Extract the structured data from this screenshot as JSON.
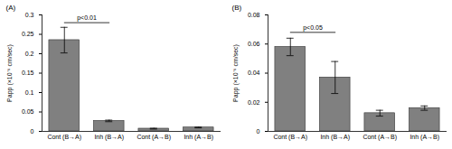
{
  "chart_data": [
    {
      "type": "bar",
      "title": "(A)",
      "y_label": "Papp (×10⁻⁶ cm/sec)",
      "categories": [
        "Cont (B→A)",
        "Inh (B→A)",
        "Cont (A→B)",
        "Inh (A→B)"
      ],
      "values": [
        0.235,
        0.027,
        0.007,
        0.01
      ],
      "error": [
        0.033,
        0.002,
        0.001,
        0.001
      ],
      "color": "#808080",
      "ylim": [
        0,
        0.3
      ],
      "yticks": [
        0,
        0.05,
        0.1,
        0.15,
        0.2,
        0.25,
        0.3
      ],
      "annotations": [
        {
          "text": "p<0.01",
          "from": "Cont (B→A)",
          "to": "Inh (B→A)",
          "y": 0.28
        }
      ]
    },
    {
      "type": "bar",
      "title": "(B)",
      "y_label": "Papp (×10⁻⁶ cm/sec)",
      "categories": [
        "Cont (B→A)",
        "Inh (B→A)",
        "Cont (A→B)",
        "Inh (A→B)"
      ],
      "values": [
        0.058,
        0.037,
        0.0125,
        0.016
      ],
      "error": [
        0.006,
        0.011,
        0.002,
        0.0015
      ],
      "color": "#808080",
      "ylim": [
        0,
        0.08
      ],
      "yticks": [
        0,
        0.02,
        0.04,
        0.06,
        0.08
      ],
      "annotations": [
        {
          "text": "p<0.05",
          "from": "Cont (B→A)",
          "to": "Inh (B→A)",
          "y": 0.068
        }
      ]
    }
  ]
}
